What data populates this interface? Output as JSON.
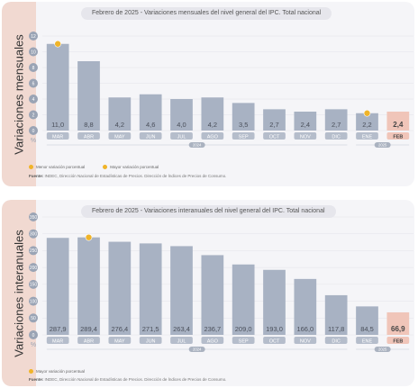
{
  "chart_data": [
    {
      "type": "bar",
      "title": "Febrero de 2025 - Variaciones mensuales del nivel general del IPC. Total nacional",
      "ylabel": "Variaciones mensuales",
      "unit": "%",
      "categories": [
        "MAR",
        "ABR",
        "MAY",
        "JUN",
        "JUL",
        "AGO",
        "SEP",
        "OCT",
        "NOV",
        "DIC",
        "ENE",
        "FEB"
      ],
      "values": [
        11.0,
        8.8,
        4.2,
        4.6,
        4.0,
        4.2,
        3.5,
        2.7,
        2.4,
        2.7,
        2.2,
        2.4
      ],
      "value_labels": [
        "11,0",
        "8,8",
        "4,2",
        "4,6",
        "4,0",
        "4,2",
        "3,5",
        "2,7",
        "2,4",
        "2,7",
        "2,2",
        "2,4"
      ],
      "yticks": [
        "0",
        "2",
        "4",
        "6",
        "8",
        "10",
        "12"
      ],
      "ylim": [
        0,
        12
      ],
      "highlight_index": 11,
      "markers": [
        {
          "index": 0,
          "kind": "max"
        },
        {
          "index": 10,
          "kind": "min"
        }
      ],
      "year_groups": [
        {
          "label": "2024",
          "start": 0,
          "end": 9
        },
        {
          "label": "2025",
          "start": 10,
          "end": 11
        }
      ],
      "legend": [
        "Menor variación porcentual",
        "Mayor variación porcentual"
      ],
      "source_label": "Fuente:",
      "source_text": "INDEC, Dirección Nacional de Estadísticas de Precios. Dirección de Índices de Precios de Consumo.",
      "colors": {
        "bar": "#a8b2c3",
        "highlight": "#f0c5b9",
        "marker": "#f0b429"
      }
    },
    {
      "type": "bar",
      "title": "Febrero de 2025 - Variaciones interanuales del nivel general del IPC. Total nacional",
      "ylabel": "Variaciones interanuales",
      "unit": "%",
      "categories": [
        "MAR",
        "ABR",
        "MAY",
        "JUN",
        "JUL",
        "AGO",
        "SEP",
        "OCT",
        "NOV",
        "DIC",
        "ENE",
        "FEB"
      ],
      "values": [
        287.9,
        289.4,
        276.4,
        271.5,
        263.4,
        236.7,
        209.0,
        193.0,
        166.0,
        117.8,
        84.5,
        66.9
      ],
      "value_labels": [
        "287,9",
        "289,4",
        "276,4",
        "271,5",
        "263,4",
        "236,7",
        "209,0",
        "193,0",
        "166,0",
        "117,8",
        "84,5",
        "66,9"
      ],
      "yticks": [
        "0",
        "50",
        "100",
        "150",
        "200",
        "250",
        "300",
        "350"
      ],
      "ylim": [
        0,
        350
      ],
      "highlight_index": 11,
      "markers": [
        {
          "index": 1,
          "kind": "max"
        }
      ],
      "year_groups": [
        {
          "label": "2024",
          "start": 0,
          "end": 9
        },
        {
          "label": "2025",
          "start": 10,
          "end": 11
        }
      ],
      "legend": [
        "Mayor variación porcentual"
      ],
      "source_label": "Fuente:",
      "source_text": "INDEC, Dirección Nacional de Estadísticas de Precios. Dirección de Índices de Precios de Consumo.",
      "colors": {
        "bar": "#a8b2c3",
        "highlight": "#f0c5b9",
        "marker": "#f0b429"
      }
    }
  ]
}
